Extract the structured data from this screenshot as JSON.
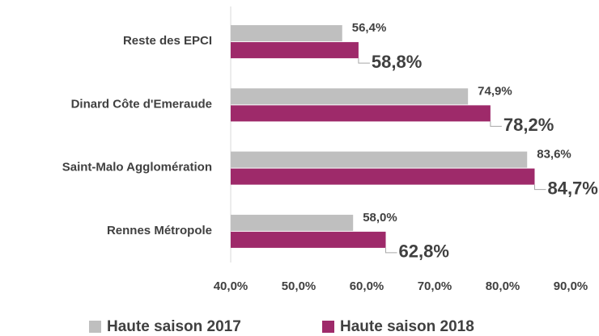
{
  "chart_data": {
    "type": "hbar",
    "categories": [
      "Reste des EPCI",
      "Dinard Côte d'Emeraude",
      "Saint-Malo Agglomération",
      "Rennes Métropole"
    ],
    "series": [
      {
        "name": "Haute saison 2017",
        "color": "#bfbfbf",
        "values": [
          56.4,
          74.9,
          83.6,
          58.0
        ],
        "value_labels": [
          "56,4%",
          "74,9%",
          "83,6%",
          "58,0%"
        ]
      },
      {
        "name": "Haute saison 2018",
        "color": "#9e2a6a",
        "values": [
          58.8,
          78.2,
          84.7,
          62.8
        ],
        "value_labels": [
          "58,8%",
          "78,2%",
          "84,7%",
          "62,8%"
        ]
      }
    ],
    "xlim": [
      40,
      90
    ],
    "xticks": [
      {
        "value": 40,
        "label": "40,0%"
      },
      {
        "value": 50,
        "label": "50,0%"
      },
      {
        "value": 60,
        "label": "60,0%"
      },
      {
        "value": 70,
        "label": "70,0%"
      },
      {
        "value": 80,
        "label": "80,0%"
      },
      {
        "value": 90,
        "label": "90,0%"
      }
    ],
    "legend": "bottom"
  }
}
